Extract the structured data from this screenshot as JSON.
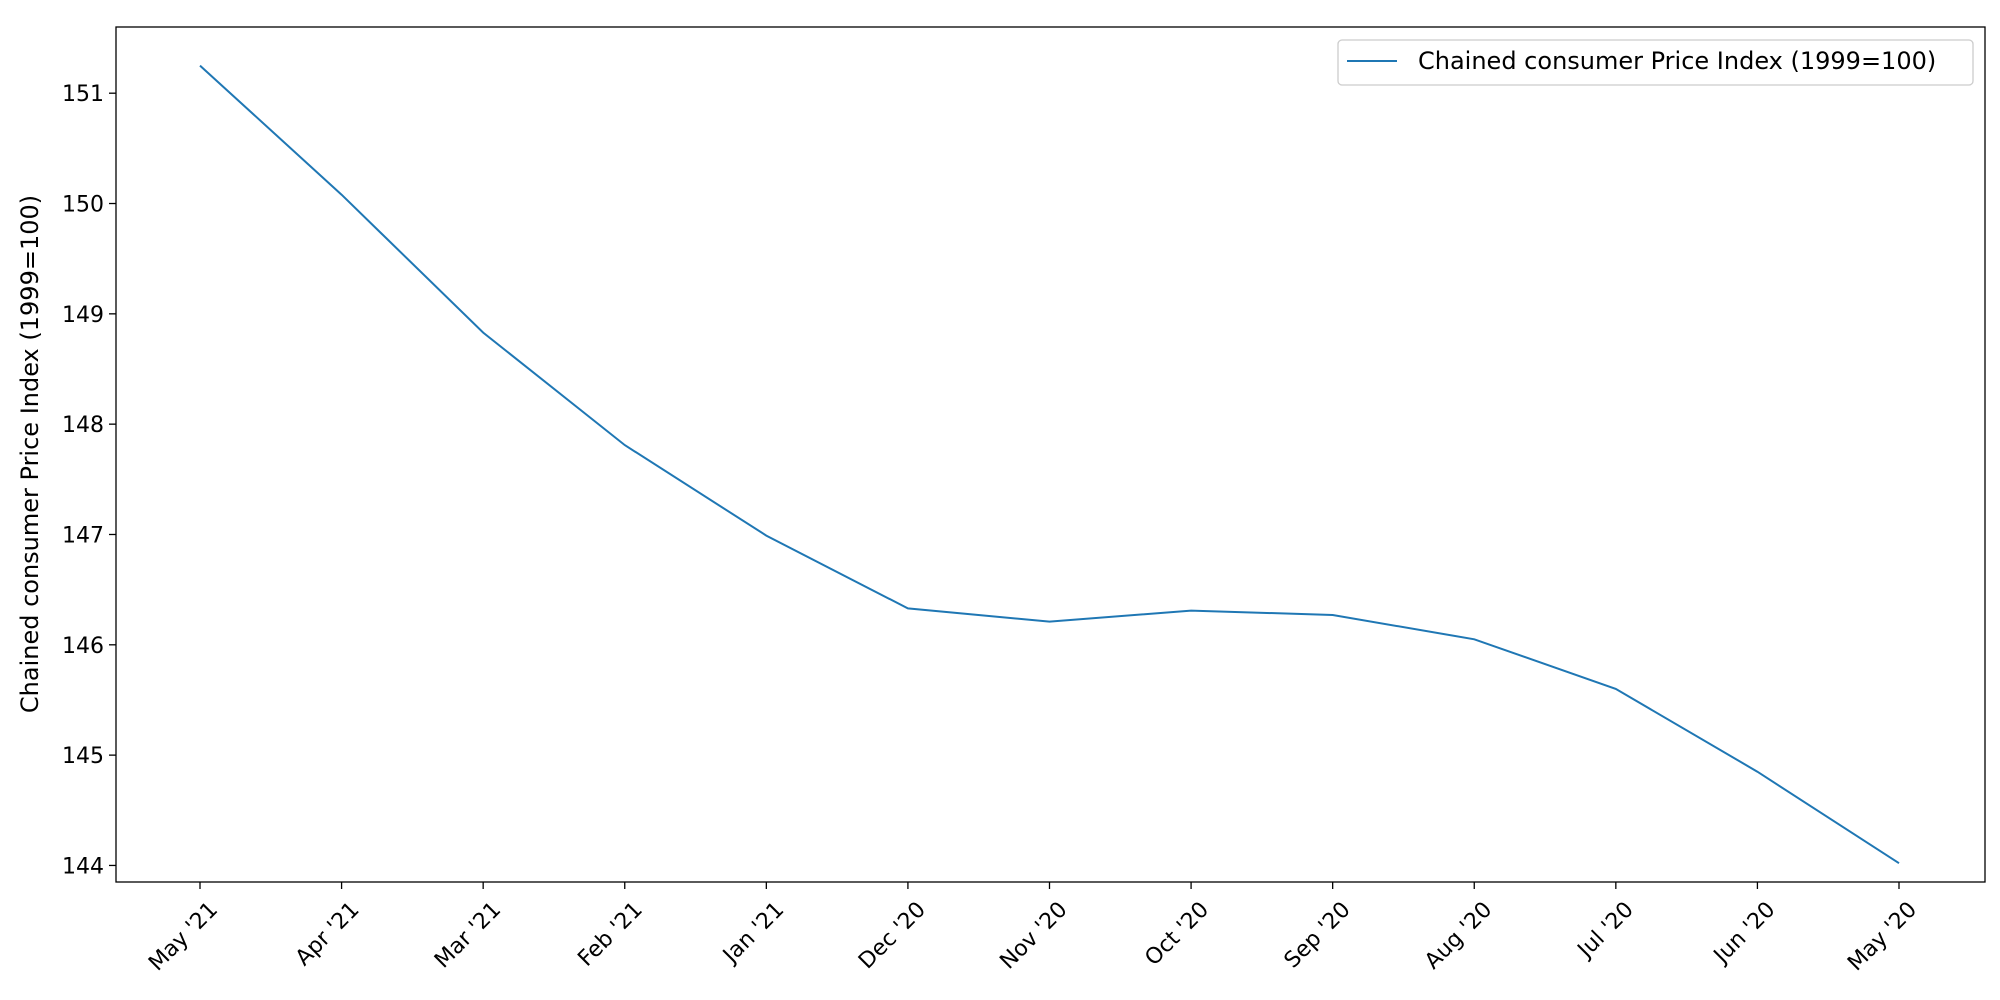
{
  "chart_data": {
    "type": "line",
    "title": "",
    "xlabel": "",
    "ylabel": "Chained consumer Price Index (1999=100)",
    "categories": [
      "May '21",
      "Apr '21",
      "Mar '21",
      "Feb '21",
      "Jan '21",
      "Dec '20",
      "Nov '20",
      "Oct '20",
      "Sep '20",
      "Aug '20",
      "Jul '20",
      "Jun '20",
      "May '20"
    ],
    "series": [
      {
        "name": "Chained consumer Price Index (1999=100)",
        "color": "#1f77b4",
        "values": [
          151.25,
          150.08,
          148.83,
          147.81,
          146.99,
          146.33,
          146.21,
          146.31,
          146.27,
          146.05,
          145.6,
          144.85,
          144.02
        ]
      }
    ],
    "ylim": [
      143.85,
      151.6
    ],
    "yticks": [
      144,
      145,
      146,
      147,
      148,
      149,
      150,
      151
    ],
    "grid": false,
    "legend_position": "top-right"
  }
}
